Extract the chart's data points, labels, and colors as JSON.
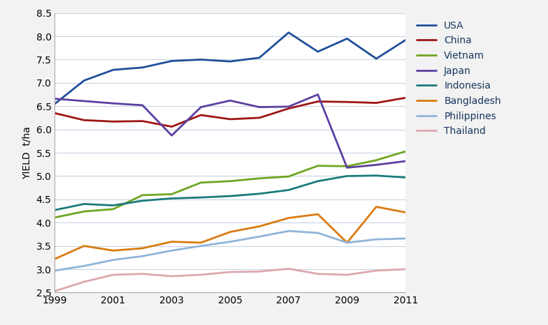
{
  "title": "",
  "ylabel": "YIELD  t/ha",
  "xlabel": "",
  "years": [
    1999,
    2000,
    2001,
    2002,
    2003,
    2004,
    2005,
    2006,
    2007,
    2008,
    2009,
    2010,
    2011
  ],
  "series": {
    "USA": {
      "values": [
        6.55,
        7.05,
        7.28,
        7.33,
        7.47,
        7.5,
        7.46,
        7.54,
        8.08,
        7.67,
        7.95,
        7.52,
        7.92
      ],
      "color": "#1F4E9B",
      "linewidth": 2.0
    },
    "China": {
      "values": [
        6.35,
        6.2,
        6.17,
        6.18,
        6.06,
        6.31,
        6.22,
        6.25,
        6.45,
        6.6,
        6.59,
        6.57,
        6.68
      ],
      "color": "#9E1414",
      "linewidth": 2.0
    },
    "Vietnam": {
      "values": [
        4.11,
        4.24,
        4.29,
        4.59,
        4.61,
        4.86,
        4.89,
        4.95,
        4.99,
        5.22,
        5.21,
        5.34,
        5.53
      ],
      "color": "#6EA520",
      "linewidth": 2.0
    },
    "Japan": {
      "values": [
        6.66,
        6.61,
        6.56,
        6.52,
        5.87,
        6.48,
        6.62,
        6.48,
        6.49,
        6.75,
        5.18,
        5.24,
        5.32
      ],
      "color": "#5B3FA0",
      "linewidth": 2.0
    },
    "Indonesia": {
      "values": [
        4.27,
        4.4,
        4.37,
        4.47,
        4.52,
        4.54,
        4.57,
        4.62,
        4.7,
        4.89,
        5.0,
        5.01,
        4.97
      ],
      "color": "#1B7A7A",
      "linewidth": 2.0
    },
    "Bangladesh": {
      "values": [
        3.22,
        3.5,
        3.4,
        3.45,
        3.59,
        3.57,
        3.8,
        3.92,
        4.1,
        4.18,
        3.57,
        4.34,
        4.22
      ],
      "color": "#D97B10",
      "linewidth": 2.0
    },
    "Philippines": {
      "values": [
        2.97,
        3.07,
        3.2,
        3.28,
        3.4,
        3.5,
        3.59,
        3.7,
        3.82,
        3.78,
        3.57,
        3.64,
        3.66
      ],
      "color": "#8EB4D8",
      "linewidth": 2.0
    },
    "Thailand": {
      "values": [
        2.53,
        2.73,
        2.88,
        2.9,
        2.85,
        2.88,
        2.94,
        2.95,
        3.01,
        2.9,
        2.88,
        2.97,
        3.0
      ],
      "color": "#DCA8AE",
      "linewidth": 2.0
    }
  },
  "ylim": [
    2.5,
    8.5
  ],
  "yticks": [
    2.5,
    3.0,
    3.5,
    4.0,
    4.5,
    5.0,
    5.5,
    6.0,
    6.5,
    7.0,
    7.5,
    8.0,
    8.5
  ],
  "xticks": [
    1999,
    2001,
    2003,
    2005,
    2007,
    2009,
    2011
  ],
  "legend_order": [
    "USA",
    "China",
    "Vietnam",
    "Japan",
    "Indonesia",
    "Bangladesh",
    "Philippines",
    "Thailand"
  ],
  "background_color": "#F2F2F2",
  "plot_bg_color": "#FFFFFF",
  "grid_color": "#C8D4E3"
}
